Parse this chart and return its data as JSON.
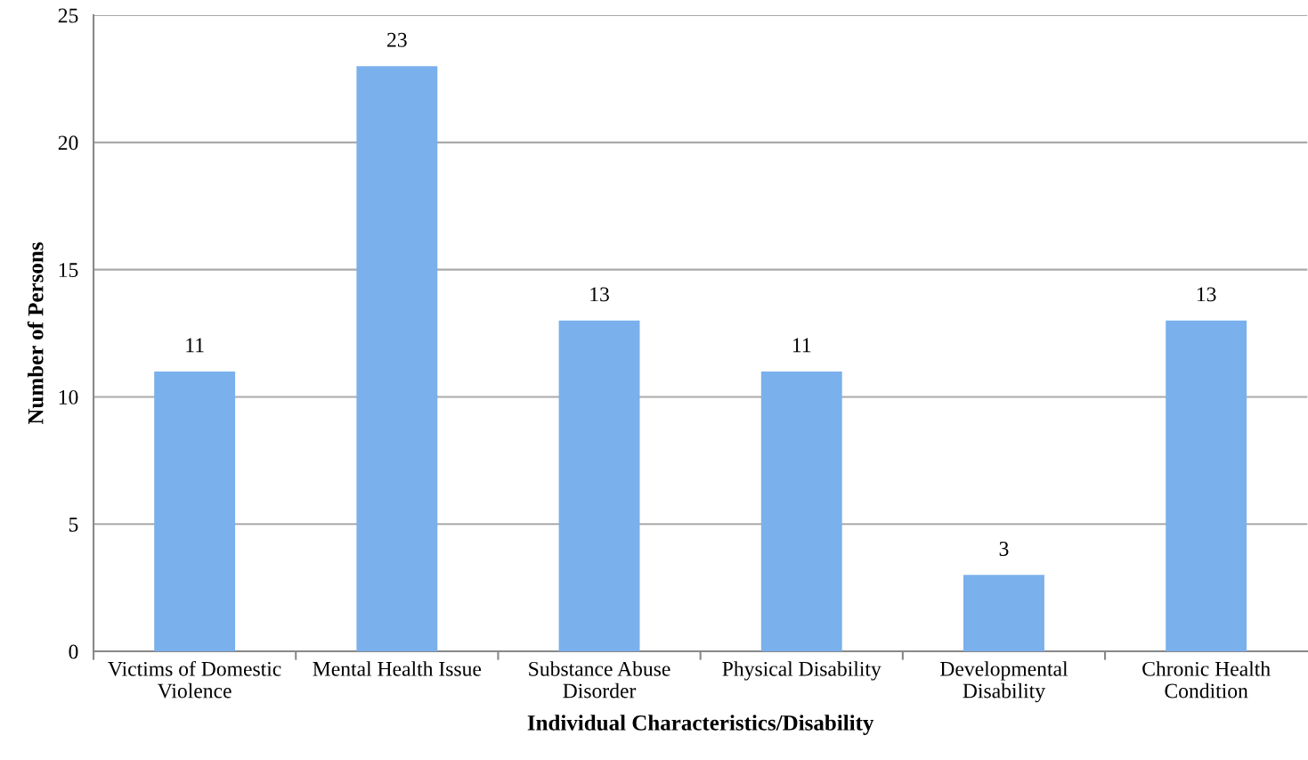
{
  "chart_data": {
    "type": "bar",
    "categories": [
      "Victims of Domestic\nViolence",
      "Mental Health Issue",
      "Substance Abuse\nDisorder",
      "Physical Disability",
      "Developmental\nDisability",
      "Chronic Health\nCondition"
    ],
    "values": [
      11,
      23,
      13,
      11,
      3,
      13
    ],
    "color": "#7ab0ec",
    "xlabel": "Individual Characteristics/Disability",
    "ylabel": "Number of Persons",
    "ylim": [
      0,
      25
    ],
    "yticks": [
      0,
      5,
      10,
      15,
      20,
      25
    ],
    "grid": "y",
    "data_labels": true,
    "legend": false
  }
}
